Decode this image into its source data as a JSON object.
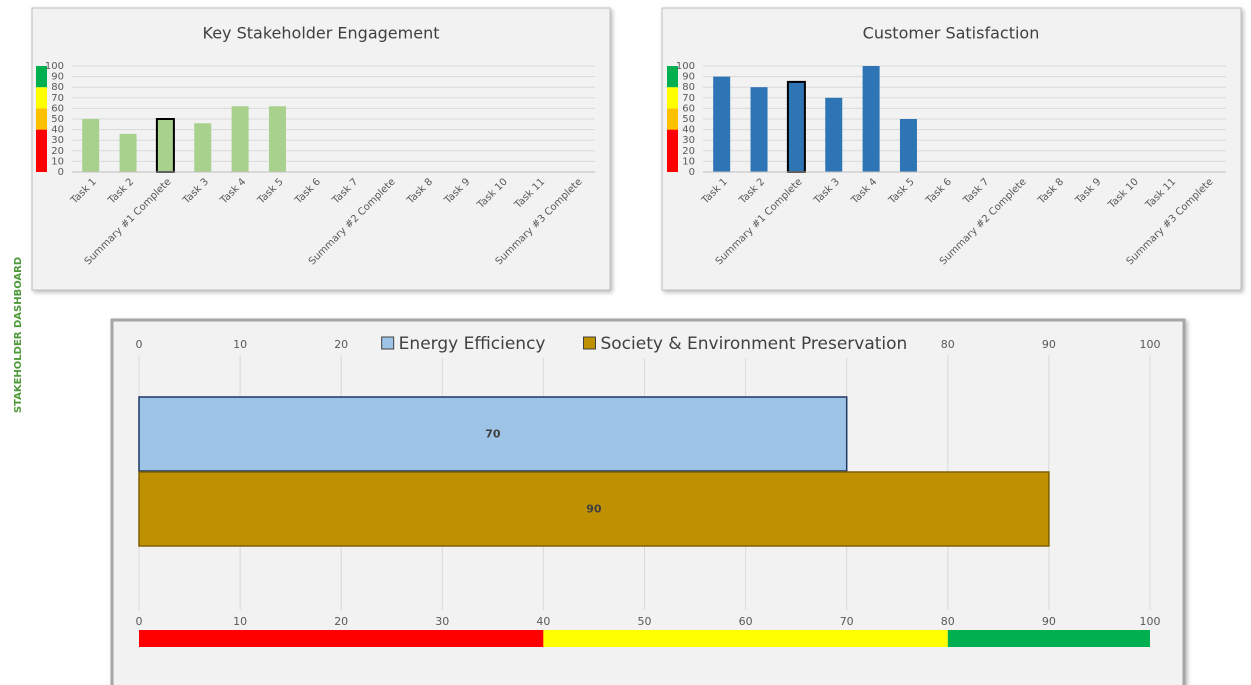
{
  "sidebar_label": "STAKEHOLDER DASHBOARD",
  "chart_data": [
    {
      "type": "bar",
      "title": "Key Stakeholder Engagement",
      "categories": [
        "Task 1",
        "Task 2",
        "Summary #1 Complete",
        "Task 3",
        "Task 4",
        "Task 5",
        "Task 6",
        "Task 7",
        "Summary #2 Complete",
        "Task 8",
        "Task 9",
        "Task 10",
        "Task 11",
        "Summary #3 Complete"
      ],
      "values": [
        50,
        36,
        50,
        46,
        62,
        62,
        null,
        null,
        null,
        null,
        null,
        null,
        null,
        null
      ],
      "color": "#a9d18e",
      "outlined": [
        2
      ],
      "outline_color": "#000000",
      "ylim": [
        0,
        100
      ],
      "yticks": [
        0,
        10,
        20,
        30,
        40,
        50,
        60,
        70,
        80,
        90,
        100
      ],
      "grid": true,
      "bands": [
        {
          "from": 0,
          "to": 40,
          "color": "#ff0000"
        },
        {
          "from": 40,
          "to": 60,
          "color": "#ffc000"
        },
        {
          "from": 60,
          "to": 80,
          "color": "#ffff00"
        },
        {
          "from": 80,
          "to": 100,
          "color": "#00b050"
        }
      ]
    },
    {
      "type": "bar",
      "title": "Customer Satisfaction",
      "categories": [
        "Task 1",
        "Task 2",
        "Summary #1 Complete",
        "Task 3",
        "Task 4",
        "Task 5",
        "Task 6",
        "Task 7",
        "Summary #2 Complete",
        "Task 8",
        "Task 9",
        "Task 10",
        "Task 11",
        "Summary #3 Complete"
      ],
      "values": [
        90,
        80,
        85,
        70,
        100,
        50,
        null,
        null,
        null,
        null,
        null,
        null,
        null,
        null
      ],
      "color": "#2e75b6",
      "outlined": [
        2
      ],
      "outline_color": "#000000",
      "ylim": [
        0,
        100
      ],
      "yticks": [
        0,
        10,
        20,
        30,
        40,
        50,
        60,
        70,
        80,
        90,
        100
      ],
      "grid": true,
      "bands": [
        {
          "from": 0,
          "to": 40,
          "color": "#ff0000"
        },
        {
          "from": 40,
          "to": 60,
          "color": "#ffc000"
        },
        {
          "from": 60,
          "to": 80,
          "color": "#ffff00"
        },
        {
          "from": 80,
          "to": 100,
          "color": "#00b050"
        }
      ]
    },
    {
      "type": "hbar",
      "series": [
        {
          "name": "Energy Efficiency",
          "color": "#9dc3e6",
          "values": [
            70
          ]
        },
        {
          "name": "Society & Environment Preservation",
          "color": "#bf9000",
          "values": [
            90
          ]
        }
      ],
      "xlim": [
        0,
        100
      ],
      "xticks": [
        0,
        10,
        20,
        30,
        40,
        50,
        60,
        70,
        80,
        90,
        100
      ],
      "grid": true,
      "legend": "top",
      "bands": [
        {
          "from": 0,
          "to": 40,
          "color": "#ff0000"
        },
        {
          "from": 40,
          "to": 80,
          "color": "#ffff00"
        },
        {
          "from": 80,
          "to": 100,
          "color": "#00b050"
        }
      ]
    }
  ]
}
